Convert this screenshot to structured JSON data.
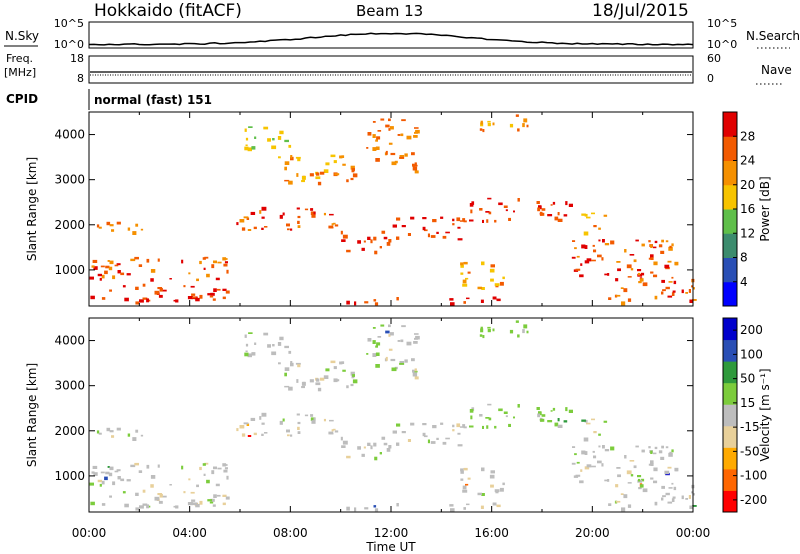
{
  "header": {
    "station": "Hokkaido (fitACF)",
    "beam": "Beam 13",
    "date": "18/Jul/2015"
  },
  "panels": {
    "nsky": {
      "left_label": "N.Sky",
      "left_ticks": [
        "10^5",
        "10^0"
      ],
      "right_label": "N.Search",
      "right_ticks": [
        "10^5",
        "10^0"
      ]
    },
    "freq": {
      "left_label": "Freq.",
      "left_unit": "[MHz]",
      "left_ticks": [
        "18",
        "8"
      ],
      "right_label": "Nave",
      "right_ticks": [
        "60",
        "0"
      ]
    },
    "cpid": {
      "label": "CPID",
      "value": "normal (fast) 151"
    }
  },
  "colors": {
    "power_scale": [
      "#0000ff",
      "#2a4fb5",
      "#3c8c6e",
      "#5fbf4a",
      "#f7c400",
      "#f59000",
      "#f25a00",
      "#e00000"
    ],
    "velocity_scale": [
      "#ff0000",
      "#ff6600",
      "#ffaa00",
      "#e8d09a",
      "#bdbdbd",
      "#7ccc3c",
      "#2f9a3c",
      "#2a4fb5",
      "#0000cc"
    ]
  },
  "chart_data": [
    {
      "type": "heatmap",
      "parameter": "power",
      "xlabel": "",
      "ylabel": "Slant Range [km]",
      "xlim": [
        0,
        24
      ],
      "ylim": [
        200,
        4500
      ],
      "y_ticks": [
        "1000",
        "2000",
        "3000",
        "4000"
      ],
      "colorbar": {
        "label": "Power [dB]",
        "ticks": [
          "4",
          "8",
          "12",
          "16",
          "20",
          "24",
          "28"
        ],
        "range": [
          0,
          32
        ]
      }
    },
    {
      "type": "heatmap",
      "parameter": "velocity",
      "xlabel": "Time UT",
      "ylabel": "Slant Range [km]",
      "xlim": [
        0,
        24
      ],
      "ylim": [
        200,
        4500
      ],
      "x_ticks": [
        "00:00",
        "04:00",
        "08:00",
        "12:00",
        "16:00",
        "20:00",
        "00:00"
      ],
      "y_ticks": [
        "1000",
        "2000",
        "3000",
        "4000"
      ],
      "colorbar": {
        "label": "Velocity [m s⁻¹]",
        "ticks": [
          "200",
          "100",
          "50",
          "15",
          "-15",
          "-50",
          "-100",
          "-200"
        ]
      }
    }
  ]
}
